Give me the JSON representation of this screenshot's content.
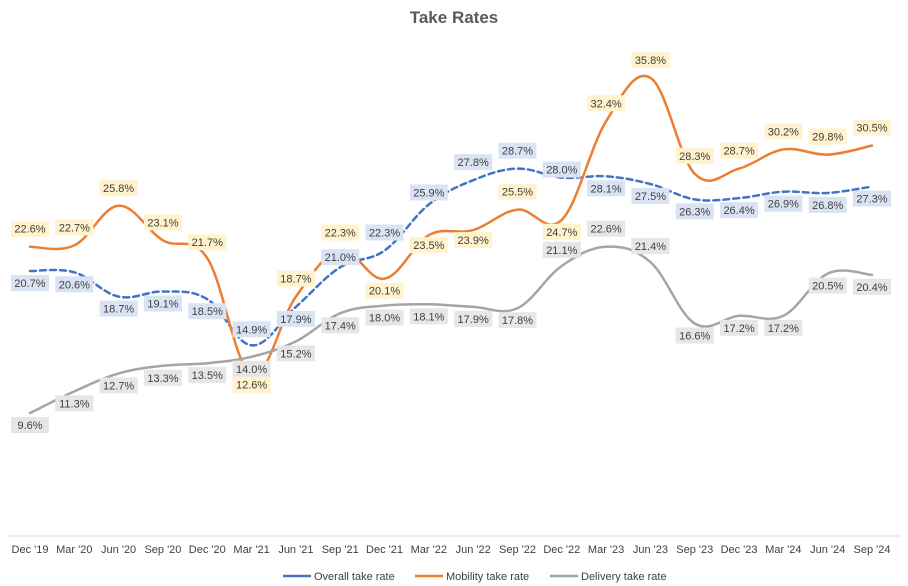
{
  "chart_data": {
    "type": "line",
    "title": "Take Rates",
    "xlabel": "",
    "ylabel": "",
    "categories": [
      "Dec '19",
      "Mar '20",
      "Jun '20",
      "Sep '20",
      "Dec '20",
      "Mar '21",
      "Jun '21",
      "Sep '21",
      "Dec '21",
      "Mar '22",
      "Jun '22",
      "Sep '22",
      "Dec '22",
      "Mar '23",
      "Jun '23",
      "Sep '23",
      "Dec '23",
      "Mar '24",
      "Jun '24",
      "Sep '24"
    ],
    "ylim": [
      0,
      40
    ],
    "grid": false,
    "legend": "bottom",
    "series": [
      {
        "name": "Overall take rate",
        "color": "#4472C4",
        "dash": true,
        "label_bg": "#DAE3F3",
        "values": [
          20.7,
          20.6,
          18.7,
          19.1,
          18.5,
          14.9,
          17.9,
          21.0,
          22.3,
          25.9,
          27.8,
          28.7,
          28.0,
          28.1,
          27.5,
          26.3,
          26.4,
          26.9,
          26.8,
          27.3
        ],
        "labels": [
          "20.7%",
          "20.6%",
          "18.7%",
          "19.1%",
          "18.5%",
          "14.9%",
          "17.9%",
          "21.0%",
          "22.3%",
          "25.9%",
          "27.8%",
          "28.7%",
          "28.0%",
          "28.1%",
          "27.5%",
          "26.3%",
          "26.4%",
          "26.9%",
          "26.8%",
          "27.3%"
        ]
      },
      {
        "name": "Mobility take rate",
        "color": "#ED7D31",
        "dash": false,
        "label_bg": "#FFF2CC",
        "values": [
          22.6,
          22.7,
          25.8,
          23.1,
          21.7,
          12.6,
          18.7,
          22.3,
          20.1,
          23.5,
          23.9,
          25.5,
          24.7,
          32.4,
          35.8,
          28.3,
          28.7,
          30.2,
          29.8,
          30.5
        ],
        "labels": [
          "22.6%",
          "22.7%",
          "25.8%",
          "23.1%",
          "21.7%",
          "12.6%",
          "18.7%",
          "22.3%",
          "20.1%",
          "23.5%",
          "23.9%",
          "25.5%",
          "24.7%",
          "32.4%",
          "35.8%",
          "28.3%",
          "28.7%",
          "30.2%",
          "29.8%",
          "30.5%"
        ]
      },
      {
        "name": "Delivery take rate",
        "color": "#A5A5A5",
        "dash": false,
        "label_bg": "#E7E6E6",
        "values": [
          9.6,
          11.3,
          12.7,
          13.3,
          13.5,
          14.0,
          15.2,
          17.4,
          18.0,
          18.1,
          17.9,
          17.8,
          21.1,
          22.6,
          21.4,
          16.6,
          17.2,
          17.2,
          20.5,
          20.4
        ],
        "labels": [
          "9.6%",
          "11.3%",
          "12.7%",
          "13.3%",
          "13.5%",
          "14.0%",
          "15.2%",
          "17.4%",
          "18.0%",
          "18.1%",
          "17.9%",
          "17.8%",
          "21.1%",
          "22.6%",
          "21.4%",
          "16.6%",
          "17.2%",
          "17.2%",
          "20.5%",
          "20.4%"
        ]
      }
    ]
  }
}
